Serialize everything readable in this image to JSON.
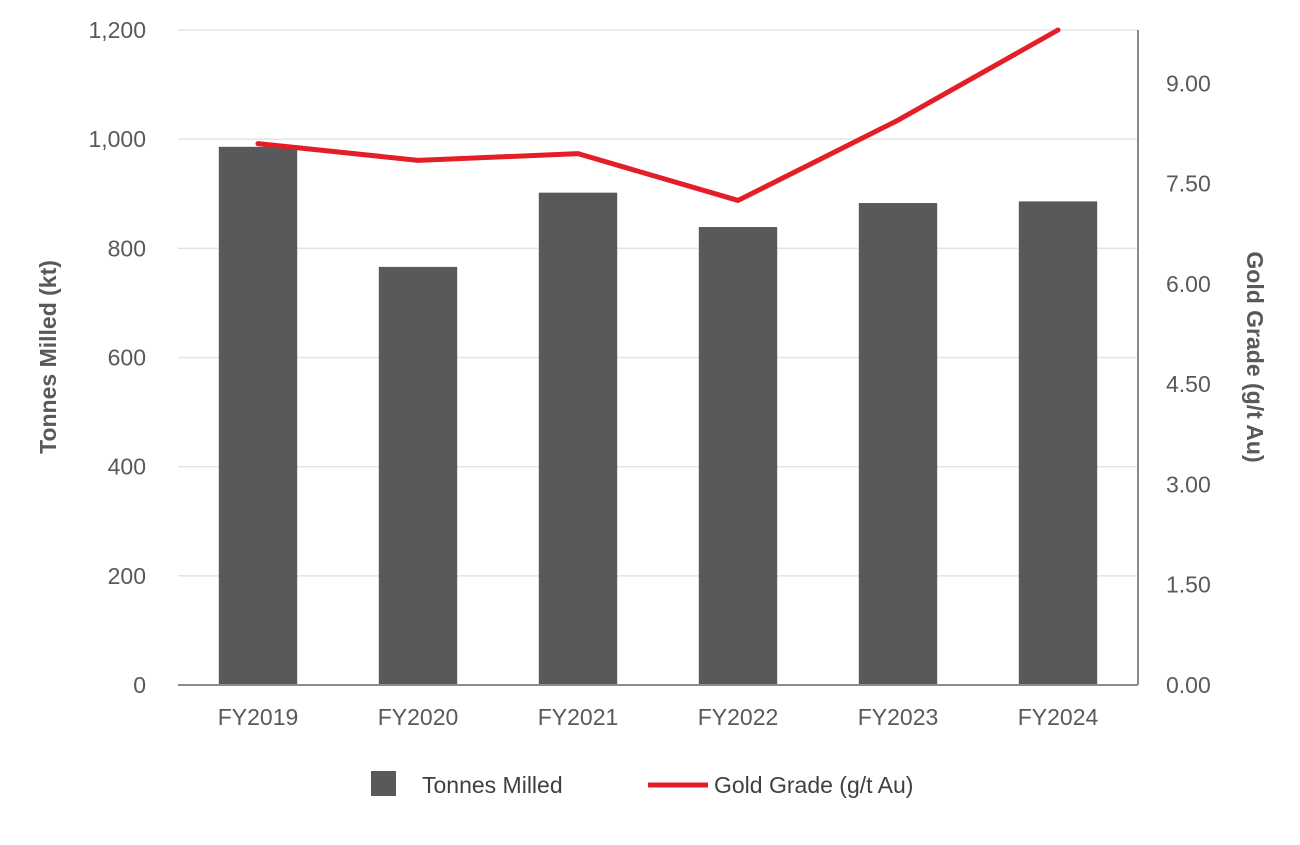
{
  "chart_data": {
    "type": "bar",
    "categories": [
      "FY2019",
      "FY2020",
      "FY2021",
      "FY2022",
      "FY2023",
      "FY2024"
    ],
    "series": [
      {
        "name": "Tonnes Milled",
        "type": "bar",
        "axis": "left",
        "color": "#58595b",
        "values": [
          986,
          766,
          902,
          839,
          883,
          886
        ]
      },
      {
        "name": "Gold Grade (g/t Au)",
        "type": "line",
        "axis": "right",
        "color": "#e31e26",
        "values": [
          8.1,
          7.85,
          7.95,
          7.25,
          8.45,
          9.8
        ]
      }
    ],
    "ylabel": "Tonnes Milled (kt)",
    "y2label": "Gold Grade (g/t Au)",
    "ylim": [
      0,
      1200
    ],
    "y2lim": [
      0,
      9.8
    ],
    "yticks": [
      "0",
      "200",
      "400",
      "600",
      "800",
      "1,000",
      "1,200"
    ],
    "y2ticks": [
      "0.00",
      "1.50",
      "3.00",
      "4.50",
      "6.00",
      "7.50",
      "9.00"
    ],
    "grid": true,
    "legend": {
      "position": "bottom",
      "items": [
        "Tonnes Milled",
        "Gold Grade (g/t Au)"
      ]
    }
  }
}
